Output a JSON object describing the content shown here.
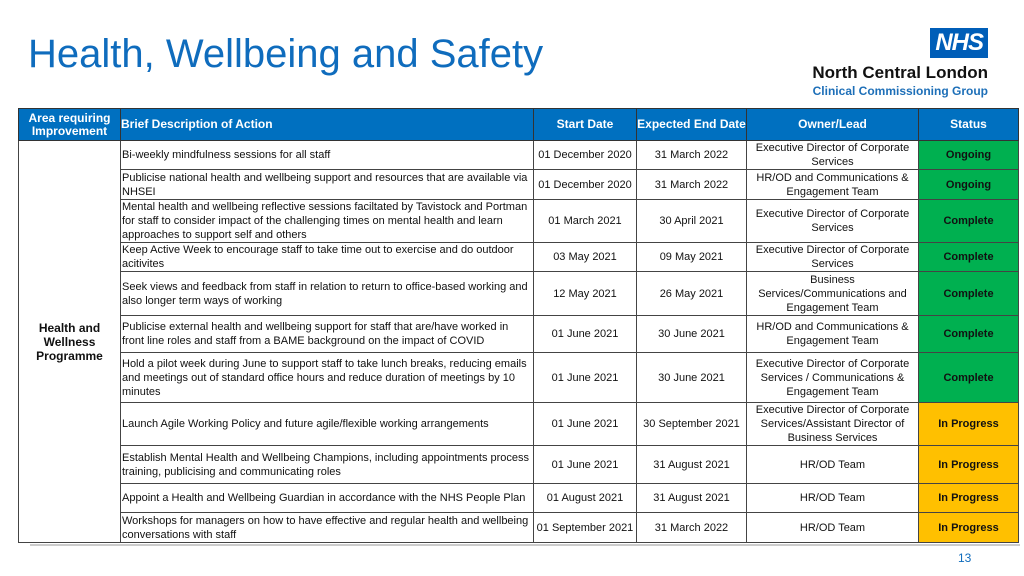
{
  "title": "Health, Wellbeing and Safety",
  "logo": {
    "badge": "NHS",
    "org": "North Central London",
    "sub": "Clinical Commissioning Group"
  },
  "colors": {
    "header": "#0070c0",
    "complete": "#00b050",
    "in_progress": "#ffc000"
  },
  "headers": [
    "Area requiring Improvement",
    "Brief Description of Action",
    "Start Date",
    "Expected End Date",
    "Owner/Lead",
    "Status"
  ],
  "area": "Health and Wellness Programme",
  "rows": [
    {
      "desc": "Bi-weekly mindfulness sessions for all staff",
      "start": "01 December 2020",
      "end": "31 March 2022",
      "owner": "Executive Director of Corporate Services",
      "status": "Ongoing"
    },
    {
      "desc": "Publicise national health and wellbeing support and resources that are available via NHSEI",
      "start": "01 December 2020",
      "end": "31 March 2022",
      "owner": "HR/OD and Communications & Engagement Team",
      "status": "Ongoing"
    },
    {
      "desc": "Mental health and wellbeing reflective sessions faciltated by Tavistock and Portman for staff to consider impact of the challenging times on mental health and learn approaches to support self and others",
      "start": "01 March 2021",
      "end": "30 April 2021",
      "owner": "Executive Director of Corporate Services",
      "status": "Complete"
    },
    {
      "desc": "Keep Active Week to encourage staff to take time out to exercise and do outdoor acitivites",
      "start": "03 May 2021",
      "end": "09 May 2021",
      "owner": "Executive Director of Corporate Services",
      "status": "Complete"
    },
    {
      "desc": "Seek views and feedback from staff in relation to return to office-based working and also longer term ways of working",
      "start": "12 May 2021",
      "end": "26 May 2021",
      "owner": "Business Services/Communications and Engagement Team",
      "status": "Complete"
    },
    {
      "desc": "Publicise external health and wellbeing support for staff that are/have worked in front line roles and staff from a BAME background on the impact of COVID",
      "start": "01 June 2021",
      "end": "30 June 2021",
      "owner": "HR/OD and Communications & Engagement Team",
      "status": "Complete"
    },
    {
      "desc": "Hold a pilot week during June to support staff to take lunch breaks, reducing emails and meetings out of standard office hours and reduce duration of meetings by 10 minutes",
      "start": "01 June 2021",
      "end": "30 June 2021",
      "owner": "Executive Director of Corporate Services / Communications & Engagement Team",
      "status": "Complete"
    },
    {
      "desc": "Launch Agile Working Policy and future agile/flexible working arrangements",
      "start": "01 June 2021",
      "end": "30 September 2021",
      "owner": "Executive Director of Corporate Services/Assistant Director of Business Services",
      "status": "In Progress"
    },
    {
      "desc": "Establish Mental Health and Wellbeing Champions, including appointments process training, publicising and communicating roles",
      "start": "01 June 2021",
      "end": "31 August 2021",
      "owner": "HR/OD Team",
      "status": "In Progress"
    },
    {
      "desc": "Appoint a Health and Wellbeing Guardian in accordance with the NHS People Plan",
      "start": "01 August 2021",
      "end": "31 August 2021",
      "owner": "HR/OD Team",
      "status": "In Progress"
    },
    {
      "desc": "Workshops for managers on how to have effective and regular health and wellbeing conversations with staff",
      "start": "01 September 2021",
      "end": "31 March 2022",
      "owner": "HR/OD Team",
      "status": "In Progress"
    }
  ],
  "page_number": "13"
}
